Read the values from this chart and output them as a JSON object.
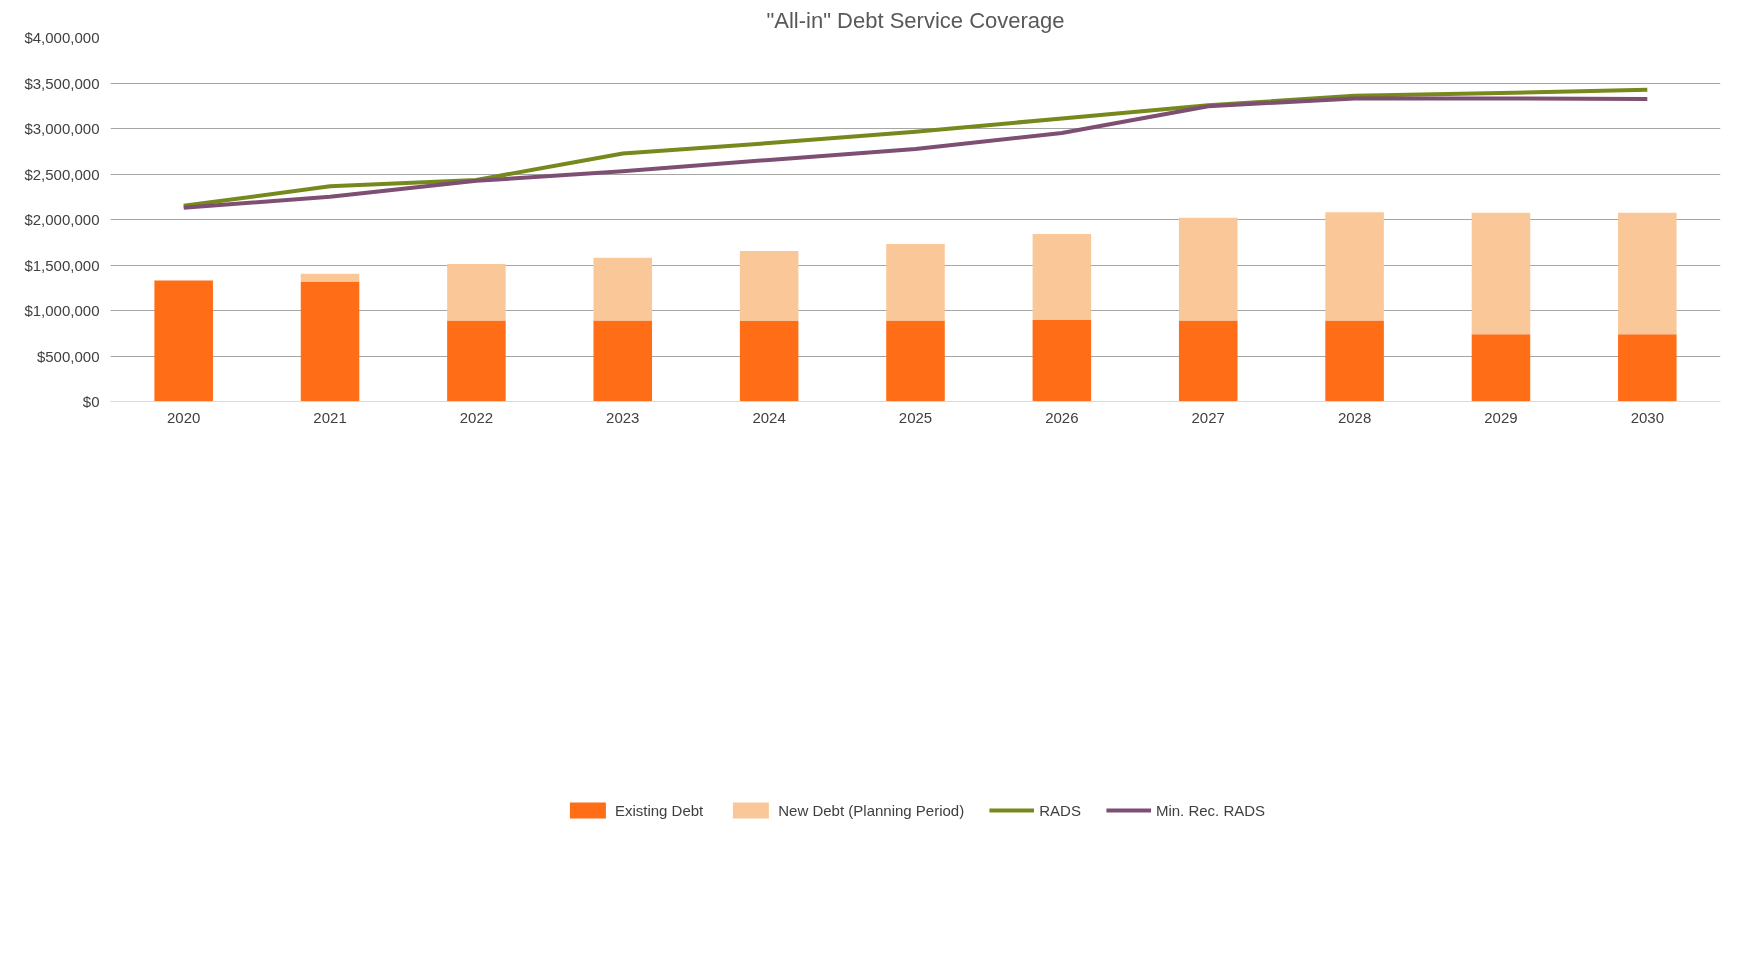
{
  "chart_data": {
    "type": "bar",
    "title": "\"All-in\" Debt Service Coverage",
    "categories": [
      "2020",
      "2021",
      "2022",
      "2023",
      "2024",
      "2025",
      "2026",
      "2027",
      "2028",
      "2029",
      "2030"
    ],
    "stacked": true,
    "series": [
      {
        "name": "Existing Debt",
        "color": "#ff6d17",
        "values": [
          1330000,
          1320000,
          890000,
          890000,
          885000,
          890000,
          895000,
          890000,
          890000,
          740000,
          740000
        ]
      },
      {
        "name": "New Debt (Planning Period)",
        "color": "#fac898",
        "values": [
          0,
          85000,
          620000,
          690000,
          770000,
          840000,
          945000,
          1130000,
          1190000,
          1335000,
          1335000
        ]
      },
      {
        "name": "RADS",
        "type": "line",
        "color": "#76891c",
        "values": [
          2150000,
          2365000,
          2435000,
          2725000,
          2840000,
          2965000,
          3110000,
          3255000,
          3360000,
          3390000,
          3425000
        ]
      },
      {
        "name": "Min. Rec. RADS",
        "type": "line",
        "color": "#7e4f72",
        "values": [
          2130000,
          2250000,
          2425000,
          2530000,
          2655000,
          2775000,
          2950000,
          3245000,
          3330000,
          3330000,
          3325000
        ]
      }
    ],
    "ylim": [
      0,
      4000000
    ],
    "yticks": [
      {
        "value": 0,
        "label": "$0"
      },
      {
        "value": 500000,
        "label": "$500,000"
      },
      {
        "value": 1000000,
        "label": "$1,000,000"
      },
      {
        "value": 1500000,
        "label": "$1,500,000"
      },
      {
        "value": 2000000,
        "label": "$2,000,000"
      },
      {
        "value": 2500000,
        "label": "$2,500,000"
      },
      {
        "value": 3000000,
        "label": "$3,000,000"
      },
      {
        "value": 3500000,
        "label": "$3,500,000"
      },
      {
        "value": 4000000,
        "label": "$4,000,000"
      }
    ],
    "grid": "y",
    "legend": "bottom",
    "marker": "none",
    "line_style": "solid"
  }
}
